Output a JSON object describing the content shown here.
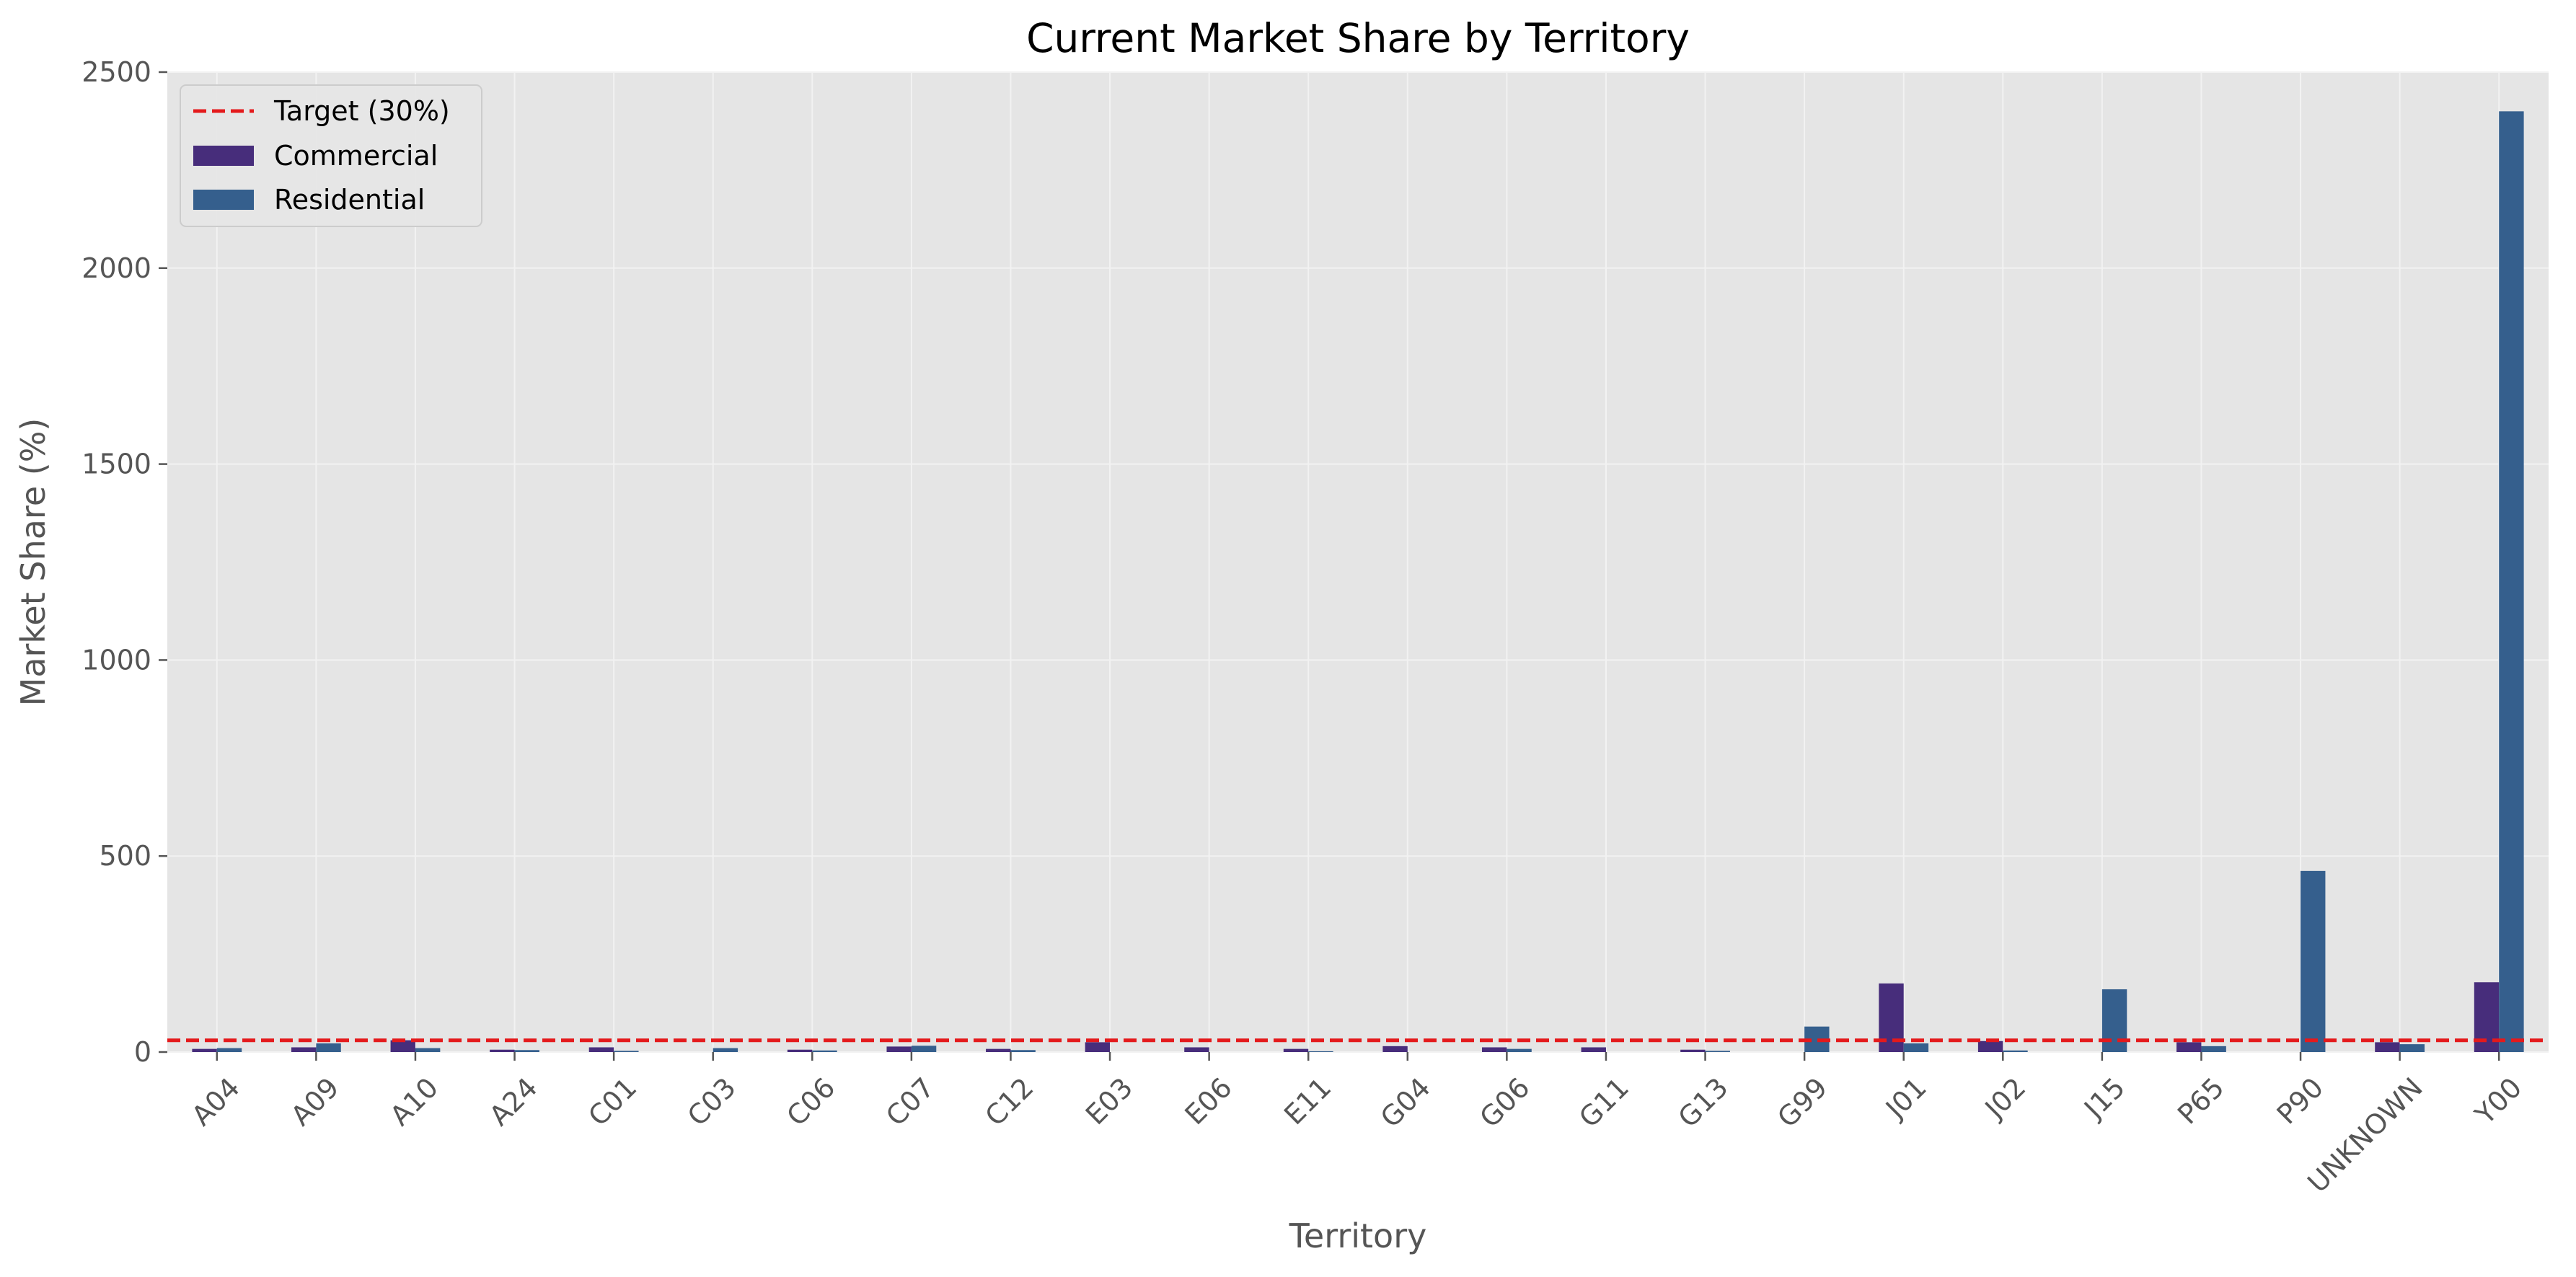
{
  "chart_data": {
    "type": "bar",
    "title": "Current Market Share by Territory",
    "xlabel": "Territory",
    "ylabel": "Market Share (%)",
    "ylim": [
      0,
      2500
    ],
    "yticks": [
      0,
      500,
      1000,
      1500,
      2000,
      2500
    ],
    "grid": true,
    "legend_position": "top-left",
    "categories": [
      "A04",
      "A09",
      "A10",
      "A24",
      "C01",
      "C03",
      "C06",
      "C07",
      "C12",
      "E03",
      "E06",
      "E11",
      "G04",
      "G06",
      "G11",
      "G13",
      "G99",
      "J01",
      "J02",
      "J15",
      "P65",
      "P90",
      "UNKNOWN",
      "Y00"
    ],
    "series": [
      {
        "name": "Commercial",
        "color": "#472d7b",
        "values": [
          8,
          12,
          30,
          6,
          12,
          0,
          6,
          14,
          8,
          25,
          12,
          8,
          15,
          12,
          12,
          6,
          0,
          175,
          28,
          0,
          25,
          0,
          25,
          178
        ]
      },
      {
        "name": "Residential",
        "color": "#355f8d",
        "values": [
          10,
          22,
          10,
          5,
          3,
          10,
          4,
          16,
          5,
          0,
          0,
          2,
          0,
          8,
          0,
          3,
          65,
          22,
          4,
          160,
          15,
          462,
          20,
          2400
        ]
      }
    ],
    "reference_line": {
      "label": "Target (30%)",
      "value": 30,
      "color": "#e41a1c",
      "style": "dashed"
    }
  }
}
